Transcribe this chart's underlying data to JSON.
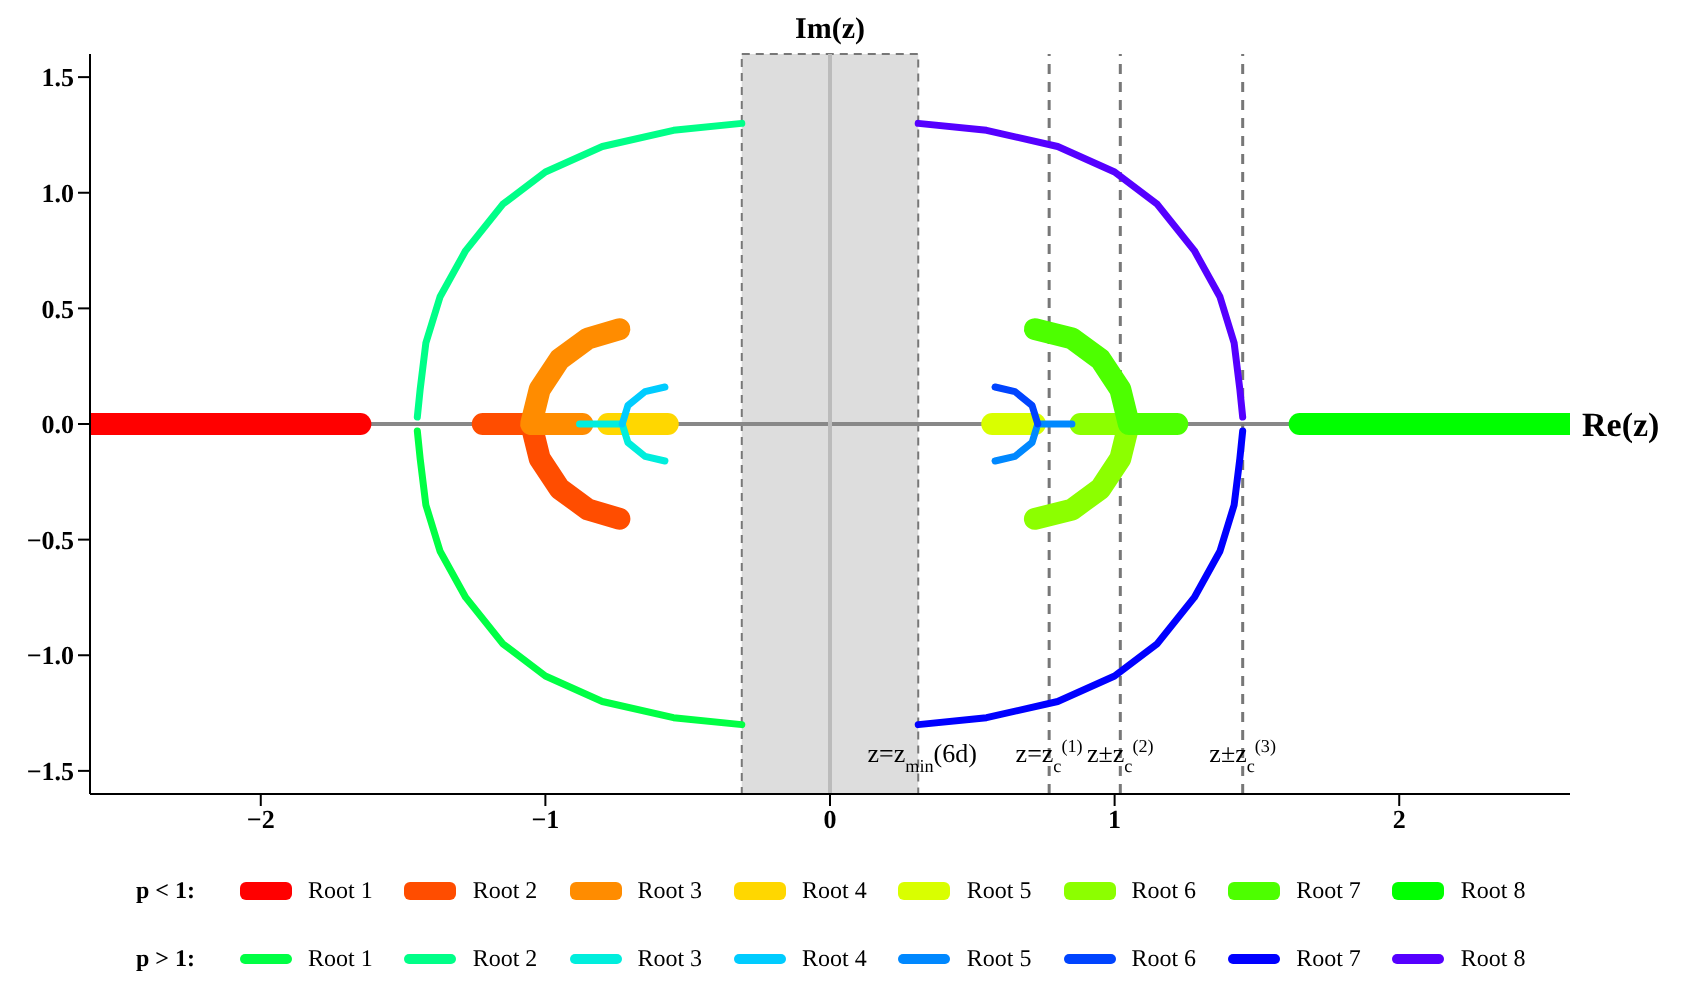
{
  "chart_data": {
    "type": "line",
    "marker": "none",
    "legend": "bottom",
    "xlim": [
      -2.6,
      2.6
    ],
    "ylim": [
      -1.6,
      1.6
    ],
    "xticks": [
      -2,
      -1,
      0,
      1,
      2
    ],
    "yticks": [
      -1.5,
      {
        "value": -1,
        "label": "−1.0"
      },
      -0.5,
      {
        "value": 0,
        "label": "0.0"
      },
      0.5,
      {
        "value": 1,
        "label": "1.0"
      },
      1.5
    ],
    "annotations": [
      "p < 1:",
      "p > 1:"
    ],
    "ref_lines": [
      {
        "axis": "y",
        "value": 0,
        "label": "Re(z)",
        "color": "#888888",
        "line_style": "solid"
      },
      {
        "axis": "x",
        "value": 0,
        "label": "Im(z)",
        "color": "#bbbbbb",
        "line_style": "solid"
      },
      {
        "axis": "x",
        "value": 0.77,
        "label": "z=z$_{c}$$^{(1)}$",
        "color": "#777777",
        "line_style": "dashed"
      },
      {
        "axis": "x",
        "value": 1.02,
        "label": "z±z$_{c}$$^{(2)}$",
        "color": "#777777",
        "line_style": "dashed"
      },
      {
        "axis": "x",
        "value": 1.45,
        "label": "z±z$_{c}$$^{(3)}$",
        "color": "#777777",
        "line_style": "dashed"
      }
    ],
    "bands": [
      {
        "axis": "x",
        "from": -0.31,
        "to": 0.31,
        "label": "z=z$_{min}$(6d)",
        "color": "#dddddd"
      }
    ],
    "series": [
      {
        "name": "Root 1",
        "color": "#ff0000",
        "x": [
          -2.6,
          -1.65
        ],
        "values": [
          0,
          0
        ]
      },
      {
        "name": "Root 2",
        "color": "#ff4d00",
        "x": [
          -1.22,
          -1.05,
          -1.02,
          -0.95,
          -0.85,
          -0.74
        ],
        "values": [
          0,
          0,
          -0.15,
          -0.28,
          -0.37,
          -0.41
        ]
      },
      {
        "name": "Root 3",
        "color": "#ff8c00",
        "x": [
          -0.74,
          -0.85,
          -0.95,
          -1.02,
          -1.05,
          -0.87
        ],
        "values": [
          0.41,
          0.37,
          0.28,
          0.15,
          0,
          0
        ]
      },
      {
        "name": "Root 4",
        "color": "#ffd700",
        "x": [
          -0.78,
          -0.57
        ],
        "values": [
          0,
          0
        ]
      },
      {
        "name": "Root 5",
        "color": "#d9ff00",
        "x": [
          0.57,
          0.72
        ],
        "values": [
          0,
          0
        ]
      },
      {
        "name": "Root 6",
        "color": "#8cff00",
        "x": [
          0.72,
          0.85,
          0.95,
          1.02,
          1.05,
          0.88
        ],
        "values": [
          -0.41,
          -0.37,
          -0.28,
          -0.15,
          0,
          0
        ]
      },
      {
        "name": "Root 7",
        "color": "#4dff00",
        "x": [
          0.72,
          0.85,
          0.95,
          1.02,
          1.05,
          1.22
        ],
        "values": [
          0.41,
          0.37,
          0.28,
          0.15,
          0,
          0
        ]
      },
      {
        "name": "Root 8",
        "color": "#00ff00",
        "x": [
          1.65,
          2.6
        ],
        "values": [
          0,
          0
        ]
      },
      {
        "name": "Root 1",
        "color": "#00ff44",
        "x": [
          -1.45,
          -1.44,
          -1.42,
          -1.37,
          -1.28,
          -1.15,
          -1.0,
          -0.8,
          -0.55,
          -0.31
        ],
        "values": [
          -0.03,
          -0.15,
          -0.35,
          -0.55,
          -0.75,
          -0.95,
          -1.09,
          -1.2,
          -1.27,
          -1.3
        ]
      },
      {
        "name": "Root 2",
        "color": "#00ff88",
        "x": [
          -1.45,
          -1.44,
          -1.42,
          -1.37,
          -1.28,
          -1.15,
          -1.0,
          -0.8,
          -0.55,
          -0.31
        ],
        "values": [
          0.03,
          0.15,
          0.35,
          0.55,
          0.75,
          0.95,
          1.09,
          1.2,
          1.27,
          1.3
        ]
      },
      {
        "name": "Root 3",
        "color": "#00eedd",
        "x": [
          -0.58,
          -0.65,
          -0.71,
          -0.73,
          -0.88
        ],
        "values": [
          -0.16,
          -0.14,
          -0.08,
          0,
          0
        ]
      },
      {
        "name": "Root 4",
        "color": "#00ccff",
        "x": [
          -0.73,
          -0.71,
          -0.65,
          -0.58
        ],
        "values": [
          0,
          0.08,
          0.14,
          0.16
        ]
      },
      {
        "name": "Root 5",
        "color": "#0088ff",
        "x": [
          0.58,
          0.65,
          0.71,
          0.73,
          0.85
        ],
        "values": [
          -0.16,
          -0.14,
          -0.08,
          0,
          0
        ]
      },
      {
        "name": "Root 6",
        "color": "#0044ff",
        "x": [
          0.73,
          0.71,
          0.65,
          0.58
        ],
        "values": [
          0,
          0.08,
          0.14,
          0.16
        ]
      },
      {
        "name": "Root 7",
        "color": "#0000ff",
        "x": [
          0.31,
          0.55,
          0.8,
          1.0,
          1.15,
          1.28,
          1.37,
          1.42,
          1.44,
          1.45
        ],
        "values": [
          -1.3,
          -1.27,
          -1.2,
          -1.09,
          -0.95,
          -0.75,
          -0.55,
          -0.35,
          -0.15,
          -0.03
        ]
      },
      {
        "name": "Root 8",
        "color": "#5500ff",
        "x": [
          0.31,
          0.55,
          0.8,
          1.0,
          1.15,
          1.28,
          1.37,
          1.42,
          1.44,
          1.45
        ],
        "values": [
          1.3,
          1.27,
          1.2,
          1.09,
          0.95,
          0.75,
          0.55,
          0.35,
          0.15,
          0.03
        ]
      }
    ]
  }
}
